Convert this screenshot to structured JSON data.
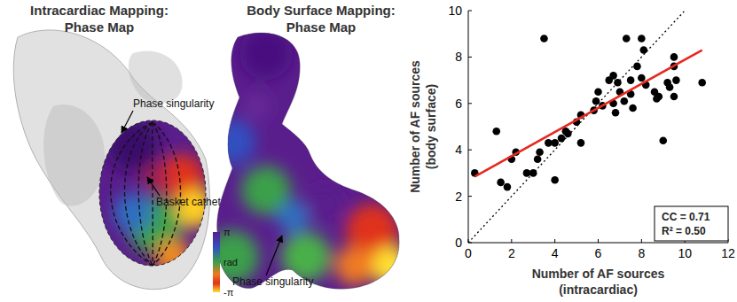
{
  "maps": [
    {
      "title": "Intracardiac Mapping:",
      "subtitle": "Phase Map",
      "annotations": [
        "Phase singularity",
        "Basket catheter"
      ]
    },
    {
      "title": "Body Surface Mapping:",
      "subtitle": "Phase Map",
      "annotations": [
        "Phase singularity"
      ]
    }
  ],
  "colorbar": {
    "range": [
      -3.1416,
      3.1416
    ],
    "ticks": [
      {
        "value": 3.1416,
        "label": "π"
      },
      {
        "value": 0,
        "label": "rad"
      },
      {
        "value": -3.1416,
        "label": "-π"
      }
    ]
  },
  "chart_data": {
    "type": "scatter",
    "xlabel": [
      "Number of AF sources",
      "(intracardiac)"
    ],
    "ylabel": [
      "Number of AF sources",
      "(body surface)"
    ],
    "x": [
      0.3,
      1.3,
      1.5,
      1.8,
      2.0,
      2.2,
      2.7,
      3.0,
      3.2,
      3.3,
      3.5,
      3.7,
      4.0,
      4.0,
      4.3,
      4.5,
      4.6,
      5.0,
      5.2,
      5.2,
      5.8,
      5.9,
      6.0,
      6.2,
      6.5,
      6.7,
      6.7,
      6.8,
      6.9,
      7.0,
      7.2,
      7.3,
      7.5,
      7.5,
      7.6,
      7.8,
      8.0,
      8.0,
      8.1,
      8.2,
      8.6,
      8.7,
      8.8,
      9.0,
      9.2,
      9.3,
      9.5,
      9.5,
      9.5,
      9.6,
      10.8
    ],
    "y": [
      3.0,
      4.8,
      2.6,
      2.4,
      3.6,
      3.9,
      3.0,
      3.0,
      3.6,
      3.9,
      8.8,
      4.3,
      2.7,
      4.3,
      4.5,
      4.8,
      4.7,
      5.2,
      5.5,
      4.3,
      5.7,
      6.1,
      6.5,
      5.9,
      7.0,
      7.2,
      6.0,
      5.6,
      6.9,
      6.5,
      6.1,
      8.8,
      7.0,
      6.4,
      5.8,
      7.6,
      7.1,
      8.8,
      8.3,
      6.8,
      6.5,
      6.2,
      6.3,
      4.4,
      6.9,
      6.7,
      8.0,
      7.6,
      6.3,
      7.0,
      6.9
    ],
    "color": "#000000",
    "marker": "circle",
    "xlim": [
      0,
      12
    ],
    "xticks": [
      0,
      2,
      4,
      6,
      8,
      10,
      12
    ],
    "ylim": [
      0,
      10
    ],
    "yticks": [
      0,
      2,
      4,
      6,
      8,
      10
    ],
    "fit": {
      "x": [
        0.3,
        10.8
      ],
      "y": [
        2.85,
        8.3
      ],
      "color": "#e8281e",
      "line_style": "solid"
    },
    "identity": {
      "x": [
        0,
        10
      ],
      "y": [
        0,
        10
      ],
      "color": "#000000",
      "line_style": "dotted"
    },
    "annotations": [
      "CC = 0.71",
      "R² = 0.50"
    ]
  }
}
